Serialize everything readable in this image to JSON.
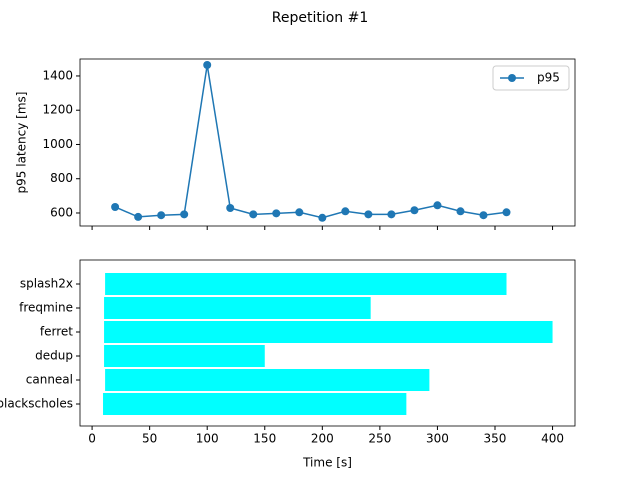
{
  "title": "Repetition #1",
  "chart_data": [
    {
      "type": "line",
      "ylabel": "p95 latency [ms]",
      "x": [
        20,
        40,
        60,
        80,
        100,
        120,
        140,
        160,
        180,
        200,
        220,
        240,
        260,
        280,
        300,
        320,
        340,
        360
      ],
      "series": [
        {
          "name": "p95",
          "color": "#1f77b4",
          "values": [
            635,
            577,
            587,
            592,
            1464,
            629,
            592,
            598,
            604,
            572,
            610,
            592,
            592,
            616,
            645,
            610,
            587,
            604
          ]
        }
      ],
      "xlim": [
        -10.5,
        419.5
      ],
      "xticks": [
        0,
        50,
        100,
        150,
        200,
        250,
        300,
        350,
        400
      ],
      "ylim": [
        524,
        1499
      ],
      "yticks": [
        600,
        800,
        1000,
        1200,
        1400
      ],
      "legend": "upper right"
    },
    {
      "type": "barh",
      "xlabel": "Time [s]",
      "categories": [
        "blackscholes",
        "canneal",
        "dedup",
        "ferret",
        "freqmine",
        "splash2x"
      ],
      "starts": [
        9.5,
        11.3,
        10.4,
        10.4,
        10.4,
        11.3
      ],
      "ends": [
        273,
        293,
        150,
        400,
        242,
        360
      ],
      "color": "#00ffff",
      "xlim": [
        -10.5,
        419.5
      ],
      "xticks": [
        0,
        50,
        100,
        150,
        200,
        250,
        300,
        350,
        400
      ]
    }
  ]
}
